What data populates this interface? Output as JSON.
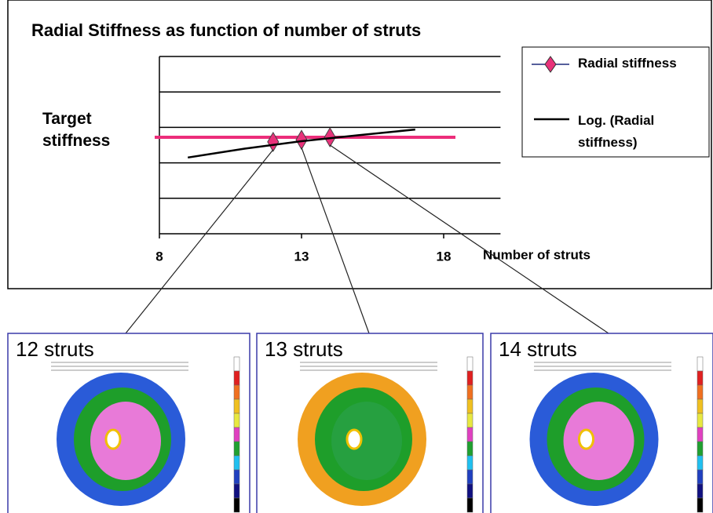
{
  "chart_data": {
    "type": "line",
    "title": "Radial Stiffness as function of number of struts",
    "x_label": "Number of struts",
    "xlim": [
      8,
      20
    ],
    "xticks": [
      8,
      13,
      18
    ],
    "ylim": [
      0,
      5
    ],
    "yticks": [
      0,
      1,
      2,
      3,
      4,
      5
    ],
    "grid": true,
    "show_ytick_labels": false,
    "series": [
      {
        "name": "Radial stiffness",
        "color": "#e8327a",
        "line_color": "#1f2a7a",
        "marker": "diamond",
        "x": [
          12,
          13,
          14
        ],
        "values": [
          2.59,
          2.65,
          2.72
        ]
      },
      {
        "name": "Log. (Radial stiffness)",
        "color": "#000000",
        "kind": "trendline",
        "x": [
          9,
          11,
          13,
          15,
          17
        ],
        "values": [
          2.15,
          2.4,
          2.61,
          2.78,
          2.94
        ]
      }
    ],
    "target": {
      "label": "Target stiffness",
      "value": 2.72,
      "color": "#ec2d7a"
    },
    "legend": "upper right"
  },
  "panels": [
    {
      "label": "12 struts"
    },
    {
      "label": "13 struts"
    },
    {
      "label": "14 struts"
    }
  ]
}
